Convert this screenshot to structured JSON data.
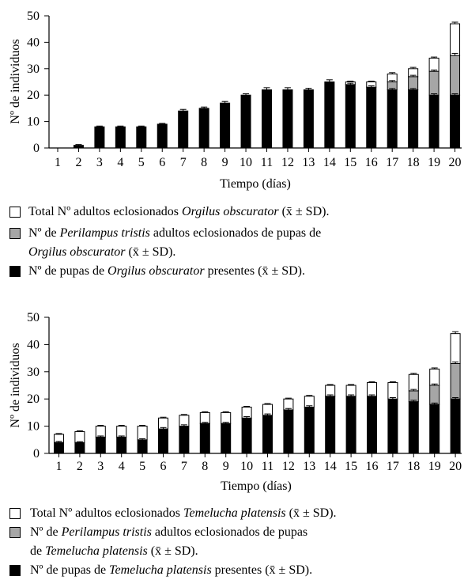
{
  "chart_data": [
    {
      "type": "bar",
      "stacked": true,
      "categories": [
        "1",
        "2",
        "3",
        "4",
        "5",
        "6",
        "7",
        "8",
        "9",
        "10",
        "11",
        "12",
        "13",
        "14",
        "15",
        "16",
        "17",
        "18",
        "19",
        "20"
      ],
      "xlabel": "Tiempo (días)",
      "ylabel": "Nº de individuos",
      "ylim": [
        0,
        50
      ],
      "yticks": [
        0,
        10,
        20,
        30,
        40,
        50
      ],
      "grid": false,
      "legend_placement": "below",
      "series": [
        {
          "color": "#000000",
          "values": [
            0,
            1,
            8,
            8,
            8,
            9,
            14,
            15,
            17,
            20,
            22,
            22,
            22,
            25,
            24,
            23,
            22,
            22,
            20,
            20
          ],
          "errors": [
            0,
            0.3,
            0.3,
            0.3,
            0.3,
            0.3,
            0.6,
            0.5,
            0.6,
            0.5,
            0.8,
            0.8,
            0.6,
            0.8,
            0.5,
            0.5,
            0.5,
            0.5,
            0.5,
            0.5
          ]
        },
        {
          "color": "#a6a6a6",
          "values": [
            0,
            0,
            0,
            0,
            0,
            0,
            0,
            0,
            0,
            0,
            0,
            0,
            0,
            0,
            0,
            0,
            3,
            5,
            9,
            15
          ],
          "errors": [
            0,
            0,
            0,
            0,
            0,
            0,
            0,
            0,
            0,
            0,
            0,
            0,
            0,
            0,
            0,
            0,
            0.5,
            0.5,
            0.5,
            0.8
          ]
        },
        {
          "color": "#ffffff",
          "values": [
            0,
            0,
            0,
            0,
            0,
            0,
            0,
            0,
            0,
            0,
            0,
            0,
            0,
            0,
            1,
            2,
            3,
            3,
            5,
            12
          ],
          "errors": [
            0,
            0,
            0,
            0,
            0,
            0,
            0,
            0,
            0,
            0,
            0,
            0,
            0,
            0,
            0.3,
            0.3,
            0.5,
            0.5,
            0.4,
            0.6
          ]
        }
      ],
      "legend": [
        {
          "swatch": "#ffffff",
          "lines": [
            [
              "Total Nº adultos eclosionados ",
              "Orgilus obscurator",
              " (x̄ ± SD)."
            ]
          ]
        },
        {
          "swatch": "#a6a6a6",
          "lines": [
            [
              "Nº de ",
              "Perilampus tristis",
              " adultos eclosionados de pupas de"
            ],
            [
              "Orgilus obscurator",
              " (x̄ ± SD)."
            ]
          ]
        },
        {
          "swatch": "#000000",
          "lines": [
            [
              "Nº de pupas de ",
              "Orgilus obscurator",
              " presentes (x̄ ± SD)."
            ]
          ]
        }
      ]
    },
    {
      "type": "bar",
      "stacked": true,
      "categories": [
        "1",
        "2",
        "3",
        "4",
        "5",
        "6",
        "7",
        "8",
        "9",
        "10",
        "11",
        "12",
        "13",
        "14",
        "15",
        "16",
        "17",
        "18",
        "19",
        "20"
      ],
      "xlabel": "Tiempo (días)",
      "ylabel": "Nº de individuos",
      "ylim": [
        0,
        50
      ],
      "yticks": [
        0,
        10,
        20,
        30,
        40,
        50
      ],
      "grid": false,
      "legend_placement": "below",
      "series": [
        {
          "color": "#000000",
          "values": [
            4,
            4,
            6,
            6,
            5,
            9,
            10,
            11,
            11,
            13,
            14,
            16,
            17,
            21,
            21,
            21,
            20,
            19,
            18,
            20
          ],
          "errors": [
            0.4,
            0.3,
            0.4,
            0.4,
            0.4,
            0.5,
            0.5,
            0.4,
            0.4,
            0.5,
            0.5,
            0.5,
            0.5,
            0.5,
            0.5,
            0.5,
            0.5,
            0.5,
            0.5,
            0.5
          ]
        },
        {
          "color": "#a6a6a6",
          "values": [
            0,
            0,
            0,
            0,
            0,
            0,
            0,
            0,
            0,
            0,
            0,
            0,
            0,
            0,
            0,
            0,
            0,
            4,
            7,
            13
          ],
          "errors": [
            0,
            0,
            0,
            0,
            0,
            0,
            0,
            0,
            0,
            0,
            0,
            0,
            0,
            0,
            0,
            0,
            0,
            0.5,
            0.5,
            0.6
          ]
        },
        {
          "color": "#ffffff",
          "values": [
            3,
            4,
            4,
            4,
            5,
            4,
            4,
            4,
            4,
            4,
            4,
            4,
            4,
            4,
            4,
            5,
            6,
            6,
            6,
            11
          ],
          "errors": [
            0.3,
            0.3,
            0.3,
            0.3,
            0.3,
            0.3,
            0.3,
            0.3,
            0.3,
            0.3,
            0.3,
            0.3,
            0.3,
            0.3,
            0.3,
            0.3,
            0.3,
            0.4,
            0.4,
            0.7
          ]
        }
      ],
      "legend": [
        {
          "swatch": "#ffffff",
          "lines": [
            [
              "Total Nº adultos eclosionados ",
              "Temelucha platensis",
              " (x̄ ± SD)."
            ]
          ]
        },
        {
          "swatch": "#a6a6a6",
          "lines": [
            [
              "Nº de ",
              "Perilampus tristis",
              " adultos eclosionados de pupas"
            ],
            [
              "de ",
              "Temelucha platensis",
              " (x̄ ± SD)."
            ]
          ]
        },
        {
          "swatch": "#000000",
          "lines": [
            [
              "Nº de pupas de ",
              "Temelucha platensis",
              " presentes (x̄ ± SD)."
            ]
          ]
        }
      ]
    }
  ]
}
